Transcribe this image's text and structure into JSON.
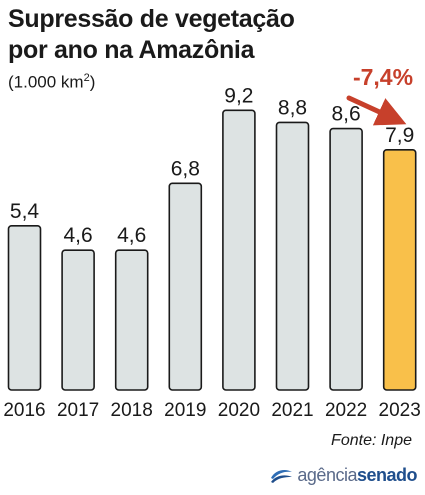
{
  "header": {
    "title_line1": "Supressão de vegetação",
    "title_line2": "por ano na Amazônia",
    "unit_prefix": "(1.000 km",
    "unit_sup": "2",
    "unit_suffix": ")"
  },
  "chart_data": {
    "type": "bar",
    "title": "Supressão de vegetação por ano na Amazônia",
    "ylabel": "(1.000 km2)",
    "xlabel": "",
    "categories": [
      "2016",
      "2017",
      "2018",
      "2019",
      "2020",
      "2021",
      "2022",
      "2023"
    ],
    "values": [
      5.4,
      4.6,
      4.6,
      6.8,
      9.2,
      8.8,
      8.6,
      7.9
    ],
    "value_labels": [
      "5,4",
      "4,6",
      "4,6",
      "6,8",
      "9,2",
      "8,8",
      "8,6",
      "7,9"
    ],
    "highlight_index": 7,
    "annotation": "-7,4%",
    "ylim": [
      0,
      10
    ],
    "grid": false,
    "colors": {
      "bar": "#dde3e3",
      "bar_highlight": "#f9c04a",
      "bar_stroke": "#1a1a1a",
      "annotation": "#c7402b"
    }
  },
  "footer": {
    "source": "Fonte: Inpe",
    "logo_word1": "agência",
    "logo_word2": "senado",
    "logo_color": "#1f4e8c"
  }
}
